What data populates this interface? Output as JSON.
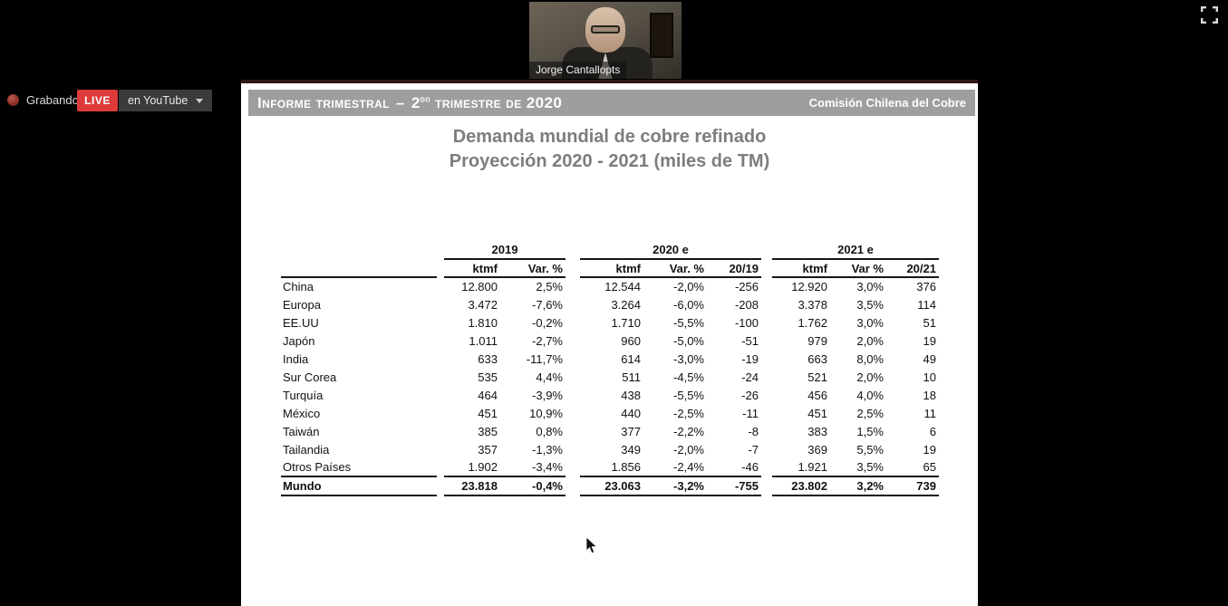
{
  "app": {
    "participant_name": "Jorge Cantallopts",
    "recording": {
      "label": "Grabando",
      "icon": "recording-dot-icon"
    },
    "live": {
      "badge": "LIVE",
      "badge_color": "#dd3b3b",
      "destination": "en YouTube",
      "caret_icon": "chevron-down-icon"
    },
    "fullscreen_icon": "fullscreen-icon",
    "background_color": "#000000"
  },
  "slide": {
    "banner": {
      "title_prefix": "Informe trimestral",
      "separator": "–",
      "quarter_number": "2",
      "quarter_suffix": "do",
      "title_rest": "trimestre de 2020",
      "org": "Comisión Chilena del Cobre",
      "bg_color": "#9e9e9e"
    },
    "title_line1": "Demanda mundial de cobre refinado",
    "title_line2": "Proyección 2020 - 2021 (miles de TM)"
  },
  "chart_data": {
    "type": "table",
    "title": "Demanda mundial de cobre refinado — Proyección 2020 - 2021 (miles de TM)",
    "unit": "miles de TM",
    "col_groups": [
      {
        "label": "2019",
        "cols": [
          "ktmf",
          "Var. %"
        ]
      },
      {
        "label": "2020 e",
        "cols": [
          "ktmf",
          "Var. %",
          "20/19"
        ]
      },
      {
        "label": "2021 e",
        "cols": [
          "ktmf",
          "Var %",
          "20/21"
        ]
      }
    ],
    "rows": [
      {
        "label": "China",
        "values": [
          "12.800",
          "2,5%",
          "12.544",
          "-2,0%",
          "-256",
          "12.920",
          "3,0%",
          "376"
        ]
      },
      {
        "label": "Europa",
        "values": [
          "3.472",
          "-7,6%",
          "3.264",
          "-6,0%",
          "-208",
          "3.378",
          "3,5%",
          "114"
        ]
      },
      {
        "label": "EE.UU",
        "values": [
          "1.810",
          "-0,2%",
          "1.710",
          "-5,5%",
          "-100",
          "1.762",
          "3,0%",
          "51"
        ]
      },
      {
        "label": "Japón",
        "values": [
          "1.011",
          "-2,7%",
          "960",
          "-5,0%",
          "-51",
          "979",
          "2,0%",
          "19"
        ]
      },
      {
        "label": "India",
        "values": [
          "633",
          "-11,7%",
          "614",
          "-3,0%",
          "-19",
          "663",
          "8,0%",
          "49"
        ]
      },
      {
        "label": "Sur Corea",
        "values": [
          "535",
          "4,4%",
          "511",
          "-4,5%",
          "-24",
          "521",
          "2,0%",
          "10"
        ]
      },
      {
        "label": "Turquía",
        "values": [
          "464",
          "-3,9%",
          "438",
          "-5,5%",
          "-26",
          "456",
          "4,0%",
          "18"
        ]
      },
      {
        "label": "México",
        "values": [
          "451",
          "10,9%",
          "440",
          "-2,5%",
          "-11",
          "451",
          "2,5%",
          "11"
        ]
      },
      {
        "label": "Taiwán",
        "values": [
          "385",
          "0,8%",
          "377",
          "-2,2%",
          "-8",
          "383",
          "1,5%",
          "6"
        ]
      },
      {
        "label": "Tailandia",
        "values": [
          "357",
          "-1,3%",
          "349",
          "-2,0%",
          "-7",
          "369",
          "5,5%",
          "19"
        ]
      },
      {
        "label": "Otros Países",
        "values": [
          "1.902",
          "-3,4%",
          "1.856",
          "-2,4%",
          "-46",
          "1.921",
          "3,5%",
          "65"
        ],
        "underline": true
      }
    ],
    "total_row": {
      "label": "Mundo",
      "values": [
        "23.818",
        "-0,4%",
        "23.063",
        "-3,2%",
        "-755",
        "23.802",
        "3,2%",
        "739"
      ]
    }
  }
}
